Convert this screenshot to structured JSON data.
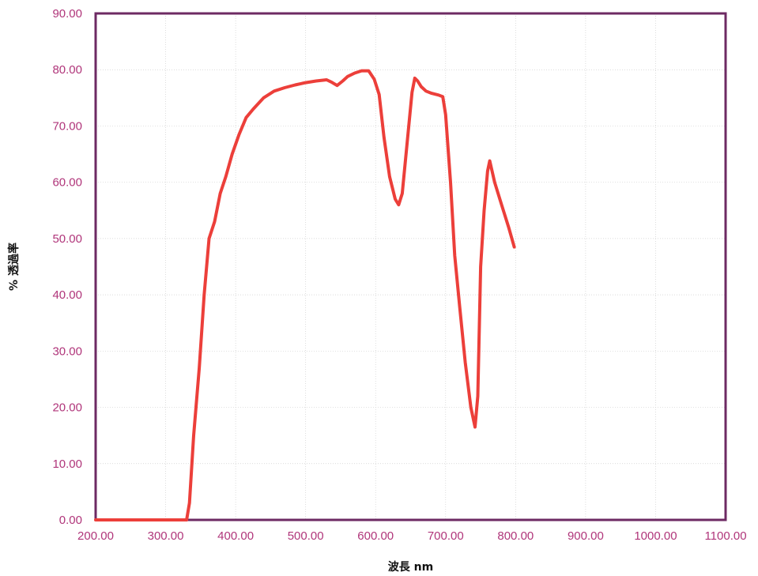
{
  "chart_data": {
    "type": "line",
    "xlabel": "波長 nm",
    "ylabel": "% 透過率",
    "xlim": [
      200,
      1100
    ],
    "ylim": [
      0,
      90
    ],
    "x_ticks": [
      "200.00",
      "300.00",
      "400.00",
      "500.00",
      "600.00",
      "700.00",
      "800.00",
      "900.00",
      "1000.00",
      "1100.00"
    ],
    "y_ticks": [
      "0.00",
      "10.00",
      "20.00",
      "30.00",
      "40.00",
      "50.00",
      "60.00",
      "70.00",
      "80.00",
      "90.00"
    ],
    "grid": true,
    "series": [
      {
        "x": [
          200,
          330,
          334,
          340,
          348,
          355,
          362,
          370,
          378,
          386,
          395,
          405,
          415,
          425,
          440,
          455,
          470,
          485,
          500,
          515,
          530,
          537,
          545,
          553,
          560,
          570,
          580,
          590,
          598,
          605,
          612,
          620,
          628,
          633,
          638,
          645,
          652,
          656,
          660,
          665,
          672,
          680,
          690,
          696,
          700,
          707,
          713,
          720,
          728,
          736,
          742,
          746,
          750,
          755,
          760,
          763,
          770,
          780,
          790,
          798
        ],
        "y": [
          0,
          0,
          3,
          15,
          27,
          40,
          50,
          53,
          58,
          61,
          65,
          68.5,
          71.5,
          73,
          75,
          76.2,
          76.8,
          77.3,
          77.7,
          78.0,
          78.2,
          77.8,
          77.2,
          78.0,
          78.8,
          79.4,
          79.8,
          79.8,
          78.3,
          75.6,
          68,
          61,
          57,
          56,
          58,
          67,
          76,
          78.5,
          78,
          77,
          76.2,
          75.8,
          75.5,
          75.2,
          72,
          60,
          47,
          38,
          28,
          20,
          16.5,
          22,
          45,
          55,
          62,
          63.8,
          60,
          56,
          52,
          48.5
        ],
        "color": "#ec3f3a"
      }
    ]
  }
}
